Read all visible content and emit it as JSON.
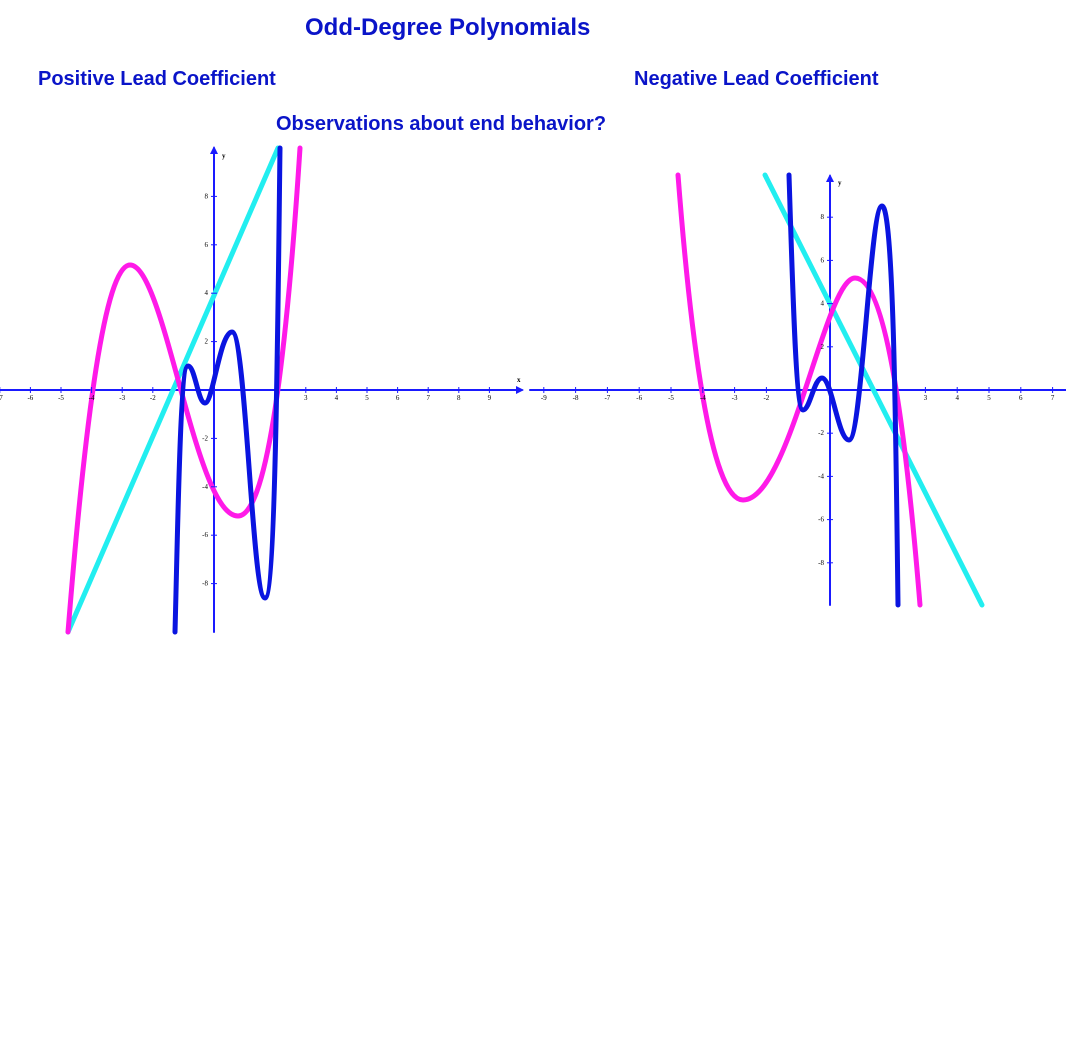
{
  "header": {
    "title": "Odd-Degree Polynomials",
    "left_subtitle": "Positive Lead Coefficient",
    "right_subtitle": "Negative Lead Coefficient",
    "question": "Observations about end behavior?"
  },
  "left_graph": {
    "x_label": "x",
    "y_label": "y",
    "x_ticks": [
      -7,
      -6,
      -5,
      -4,
      -3,
      -2,
      3,
      4,
      5,
      6,
      7,
      8,
      9
    ],
    "y_ticks": [
      8,
      6,
      4,
      2,
      -2,
      -4,
      -6,
      -8
    ]
  },
  "right_graph": {
    "y_label": "y",
    "x_ticks": [
      -9,
      -8,
      -7,
      -6,
      -5,
      -4,
      -3,
      -2,
      3,
      4,
      5,
      6,
      7
    ],
    "y_ticks": [
      8,
      6,
      4,
      2,
      -2,
      -4,
      -6,
      -8
    ]
  }
}
